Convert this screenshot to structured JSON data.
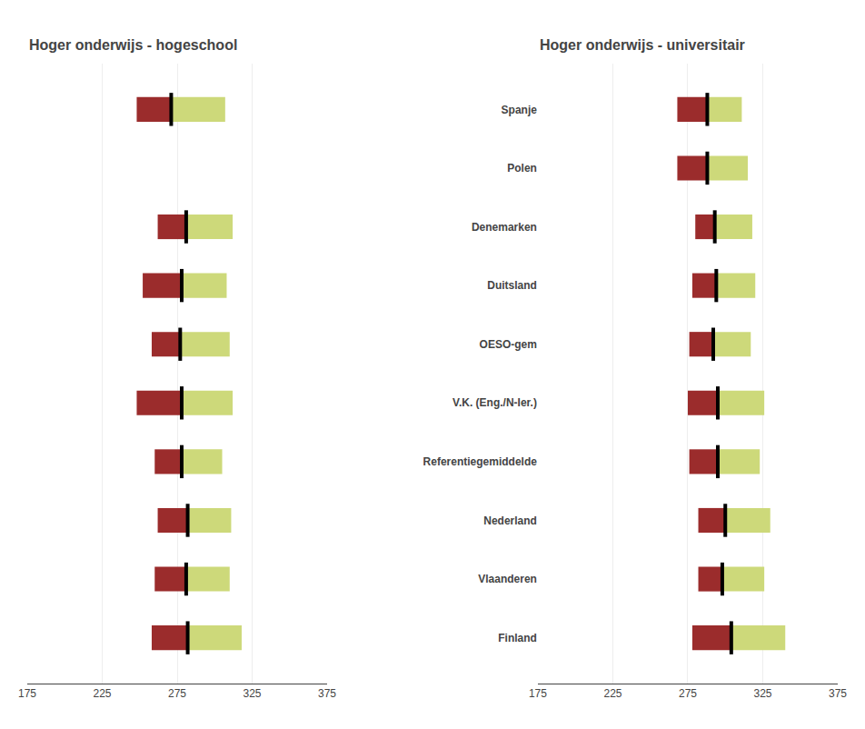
{
  "chart_data": [
    {
      "type": "bar",
      "orientation": "horizontal",
      "title": "Hoger onderwijs - hogeschool",
      "categories": [
        "Spanje",
        "Polen",
        "Denemarken",
        "Duitsland",
        "OESO-gem",
        "V.K. (Eng./N-Ier.)",
        "Referentiegemiddelde",
        "Nederland",
        "Vlaanderen",
        "Finland"
      ],
      "series": [
        {
          "color": "#9b2c2c",
          "values": [
            248,
            null,
            262,
            252,
            258,
            248,
            260,
            262,
            260,
            258
          ]
        },
        {
          "color": "#000000",
          "values": [
            271,
            null,
            281,
            278,
            277,
            278,
            278,
            282,
            281,
            282
          ]
        },
        {
          "color": "#cdd97a",
          "values": [
            307,
            null,
            312,
            308,
            310,
            312,
            305,
            311,
            310,
            318
          ]
        }
      ],
      "xlim": [
        175,
        375
      ],
      "xticks": [
        175,
        225,
        275,
        325,
        375
      ],
      "grid": true,
      "tick_labels": "x"
    },
    {
      "type": "bar",
      "orientation": "horizontal",
      "title": "Hoger onderwijs - universitair",
      "categories": [
        "Spanje",
        "Polen",
        "Denemarken",
        "Duitsland",
        "OESO-gem",
        "V.K. (Eng./N-Ier.)",
        "Referentiegemiddelde",
        "Nederland",
        "Vlaanderen",
        "Finland"
      ],
      "series": [
        {
          "color": "#9b2c2c",
          "values": [
            268,
            268,
            280,
            278,
            276,
            275,
            276,
            282,
            282,
            278
          ]
        },
        {
          "color": "#000000",
          "values": [
            288,
            288,
            293,
            294,
            292,
            295,
            295,
            300,
            298,
            304
          ]
        },
        {
          "color": "#cdd97a",
          "values": [
            311,
            315,
            318,
            320,
            317,
            326,
            323,
            330,
            326,
            340
          ]
        }
      ],
      "xlim": [
        175,
        375
      ],
      "xticks": [
        175,
        225,
        275,
        325,
        375
      ],
      "grid": true
    }
  ]
}
